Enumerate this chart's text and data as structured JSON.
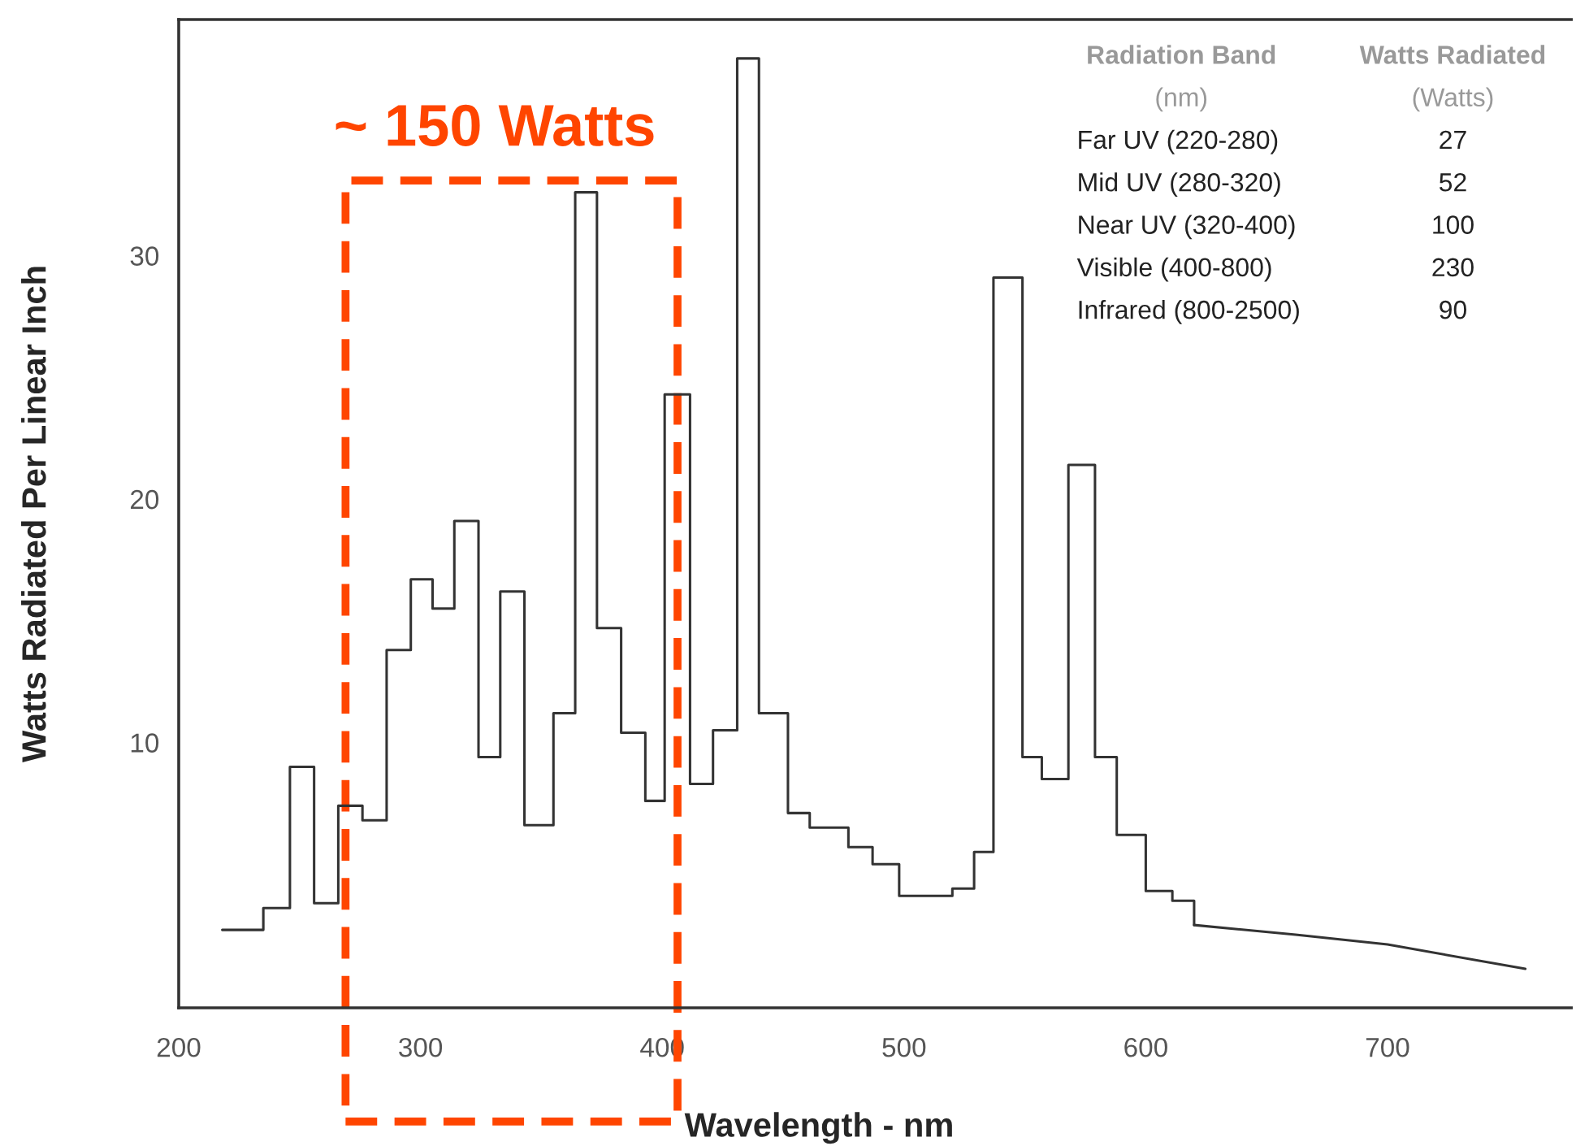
{
  "chart_data": {
    "type": "step",
    "xlabel": "Wavelength - nm",
    "ylabel": "Watts Radiated Per Linear Inch",
    "series": [
      {
        "color": "#333333",
        "x": [
          218,
          235,
          246,
          256,
          266,
          276,
          286,
          296,
          305,
          314,
          324,
          333,
          343,
          355,
          364,
          373,
          383,
          393,
          401,
          411.5,
          421,
          431,
          440,
          452,
          461,
          477,
          487,
          498,
          520,
          529,
          537,
          549,
          557,
          568,
          579,
          588,
          600,
          611,
          620
        ],
        "values": [
          2.3,
          3.2,
          9.0,
          3.4,
          7.4,
          6.8,
          13.8,
          16.7,
          15.5,
          19.1,
          9.4,
          16.2,
          6.6,
          11.2,
          32.6,
          14.7,
          10.4,
          7.6,
          24.3,
          8.3,
          10.5,
          38.1,
          11.2,
          7.1,
          6.5,
          5.7,
          5.0,
          3.7,
          4.0,
          5.5,
          29.1,
          9.4,
          8.5,
          21.4,
          9.4,
          6.2,
          3.9,
          3.5,
          2.5
        ]
      },
      {
        "type": "line",
        "color": "#333333",
        "x": [
          620,
          662,
          700,
          757
        ],
        "values": [
          2.5,
          2.1,
          1.7,
          0.7
        ]
      }
    ],
    "xlim": [
      200,
      776
    ],
    "ylim": [
      -0.9,
      39.7
    ],
    "xticks": [
      200,
      300,
      400,
      500,
      600,
      700
    ],
    "yticks": [
      10,
      20,
      30
    ],
    "annotations": [
      "~ 150 Watts",
      "Radiation Band",
      "Watts Radiated",
      "(nm)",
      "(Watts)",
      "Far UV (220-280)",
      "27",
      "Mid UV (280-320)",
      "52",
      "Near UV (320-400)",
      "100",
      "Visible (400-800)",
      "230",
      "Infrared (800-2500)",
      "90"
    ],
    "grid": false
  }
}
